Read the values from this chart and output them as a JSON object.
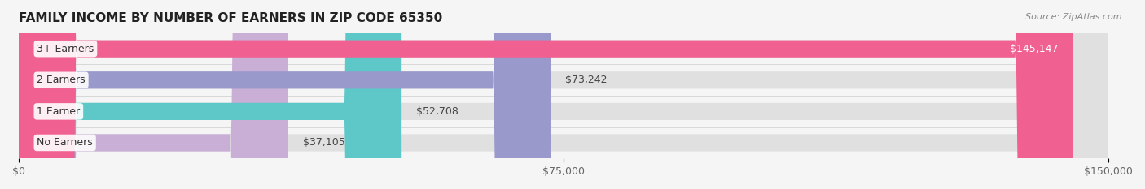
{
  "title": "FAMILY INCOME BY NUMBER OF EARNERS IN ZIP CODE 65350",
  "source": "Source: ZipAtlas.com",
  "categories": [
    "No Earners",
    "1 Earner",
    "2 Earners",
    "3+ Earners"
  ],
  "values": [
    37105,
    52708,
    73242,
    145147
  ],
  "bar_colors": [
    "#c9aed6",
    "#5ec8c8",
    "#9999cc",
    "#f06090"
  ],
  "bar_bg_color": "#e8e8e8",
  "xlim": [
    0,
    150000
  ],
  "xticks": [
    0,
    75000,
    150000
  ],
  "xtick_labels": [
    "$0",
    "$75,000",
    "$150,000"
  ],
  "value_labels": [
    "$37,105",
    "$52,708",
    "$73,242",
    "$145,147"
  ],
  "title_fontsize": 11,
  "label_fontsize": 9,
  "value_fontsize": 9,
  "source_fontsize": 8,
  "background_color": "#f5f5f5"
}
